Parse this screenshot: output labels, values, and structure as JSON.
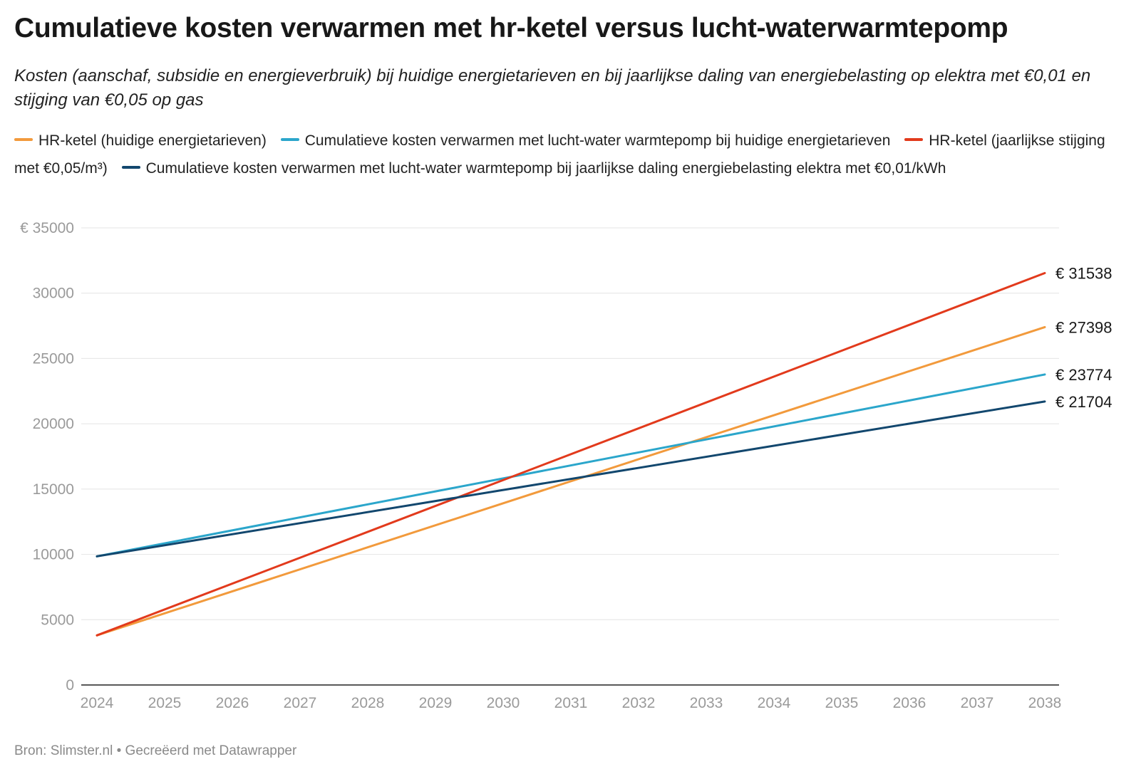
{
  "title": "Cumulatieve kosten verwarmen met hr-ketel versus lucht-waterwarmtepomp",
  "subtitle": "Kosten (aanschaf, subsidie en energieverbruik) bij huidige energietarieven en bij jaarlijkse daling van energiebelasting op elektra met €0,01 en stijging van €0,05 op gas",
  "footer": "Bron: Slimster.nl • Gecreëerd met Datawrapper",
  "chart_data": {
    "type": "line",
    "title": "Cumulatieve kosten verwarmen met hr-ketel versus lucht-waterwarmtepomp",
    "xlabel": "",
    "ylabel": "",
    "ylim": [
      0,
      35000
    ],
    "y_ticks": [
      {
        "value": 0,
        "label": "0"
      },
      {
        "value": 5000,
        "label": "5000"
      },
      {
        "value": 10000,
        "label": "10000"
      },
      {
        "value": 15000,
        "label": "15000"
      },
      {
        "value": 20000,
        "label": "20000"
      },
      {
        "value": 25000,
        "label": "25000"
      },
      {
        "value": 30000,
        "label": "30000"
      },
      {
        "value": 35000,
        "label": "€ 35000"
      }
    ],
    "x": [
      "2024",
      "2025",
      "2026",
      "2027",
      "2028",
      "2029",
      "2030",
      "2031",
      "2032",
      "2033",
      "2034",
      "2035",
      "2036",
      "2037",
      "2038"
    ],
    "grid": true,
    "legend_position": "top",
    "series": [
      {
        "name": "HR-ketel (huidige energietarieven)",
        "color": "#f29a3c",
        "start": 3800,
        "end": 27398,
        "end_label": "€ 27398"
      },
      {
        "name": "Cumulatieve kosten verwarmen met lucht-water warmtepomp bij huidige energietarieven",
        "color": "#2ba6cb",
        "start": 9850,
        "end": 23774,
        "end_label": "€ 23774"
      },
      {
        "name": "HR-ketel (jaarlijkse stijging met €0,05/m³)",
        "color": "#e23a1c",
        "start": 3800,
        "end": 31538,
        "end_label": "€ 31538"
      },
      {
        "name": "Cumulatieve kosten verwarmen met lucht-water warmtepomp bij jaarlijkse daling energiebelasting elektra met €0,01/kWh",
        "color": "#12476e",
        "start": 9850,
        "end": 21704,
        "end_label": "€ 21704"
      }
    ]
  }
}
